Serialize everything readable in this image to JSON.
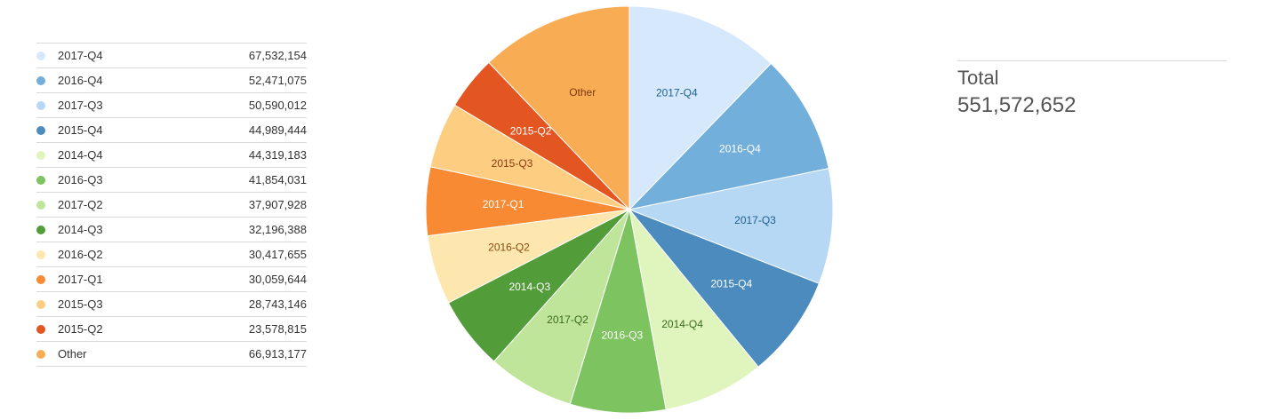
{
  "chart_data": {
    "type": "pie",
    "slices": [
      {
        "label": "2017-Q4",
        "value": 67532154,
        "value_text": "67,532,154",
        "color": "#d6e8fb",
        "text_color": "#1f5f8b"
      },
      {
        "label": "2016-Q4",
        "value": 52471075,
        "value_text": "52,471,075",
        "color": "#72afda",
        "text_color": "#ffffff"
      },
      {
        "label": "2017-Q3",
        "value": 50590012,
        "value_text": "50,590,012",
        "color": "#b6d8f5",
        "text_color": "#1f5f8b"
      },
      {
        "label": "2015-Q4",
        "value": 44989444,
        "value_text": "44,989,444",
        "color": "#4b8bbe",
        "text_color": "#ffffff"
      },
      {
        "label": "2014-Q4",
        "value": 44319183,
        "value_text": "44,319,183",
        "color": "#dff5bd",
        "text_color": "#3a6b1c"
      },
      {
        "label": "2016-Q3",
        "value": 41854031,
        "value_text": "41,854,031",
        "color": "#7dc35f",
        "text_color": "#ffffff"
      },
      {
        "label": "2017-Q2",
        "value": 37907928,
        "value_text": "37,907,928",
        "color": "#bfe59a",
        "text_color": "#3a6b1c"
      },
      {
        "label": "2014-Q3",
        "value": 32196388,
        "value_text": "32,196,388",
        "color": "#529d3a",
        "text_color": "#ffffff"
      },
      {
        "label": "2016-Q2",
        "value": 30417655,
        "value_text": "30,417,655",
        "color": "#fde7ae",
        "text_color": "#8a4b10"
      },
      {
        "label": "2017-Q1",
        "value": 30059644,
        "value_text": "30,059,644",
        "color": "#f78a33",
        "text_color": "#ffffff"
      },
      {
        "label": "2015-Q3",
        "value": 28743146,
        "value_text": "28,743,146",
        "color": "#fdcd82",
        "text_color": "#8a3b10"
      },
      {
        "label": "2015-Q2",
        "value": 23578815,
        "value_text": "23,578,815",
        "color": "#e35622",
        "text_color": "#ffffff"
      },
      {
        "label": "Other",
        "value": 66913177,
        "value_text": "66,913,177",
        "color": "#f8ad55",
        "text_color": "#7a3a10"
      }
    ],
    "legend_position": "left"
  },
  "total": {
    "label": "Total",
    "value_text": "551,572,652"
  }
}
